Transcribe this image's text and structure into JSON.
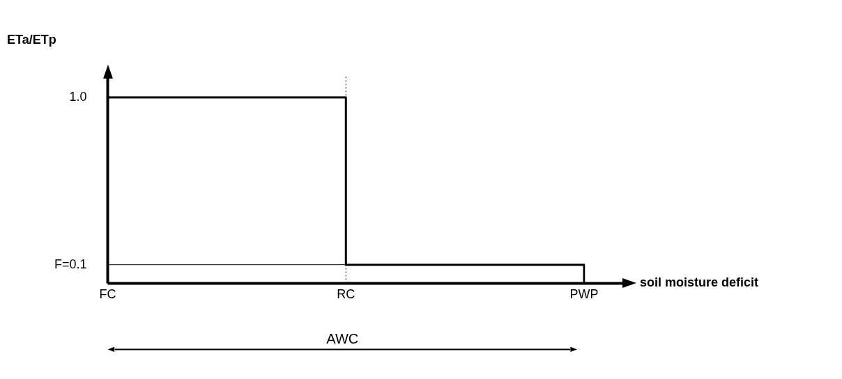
{
  "chart_data": {
    "type": "step",
    "xlabel": "soil moisture deficit",
    "ylabel": "ETa/ETp",
    "categories": [
      "FC",
      "RC",
      "PWP"
    ],
    "series": [
      {
        "color": "#000000",
        "values": [
          1.0,
          0.1,
          0
        ]
      }
    ],
    "ylim": [
      0,
      1.12
    ],
    "yticks": [
      {
        "value": 1.0,
        "label": "1.0"
      },
      {
        "value": 0.1,
        "label": "F=0.1"
      }
    ],
    "ref_lines": [
      {
        "axis": "y",
        "value": 0.1,
        "color": "#000000",
        "line_style": "solid"
      },
      {
        "axis": "x",
        "value": "RC",
        "color": "#000000",
        "line_style": "dotted"
      }
    ],
    "annotations": [
      "AWC"
    ],
    "grid": false,
    "legend": false,
    "marker": "none",
    "line_style": "solid"
  }
}
